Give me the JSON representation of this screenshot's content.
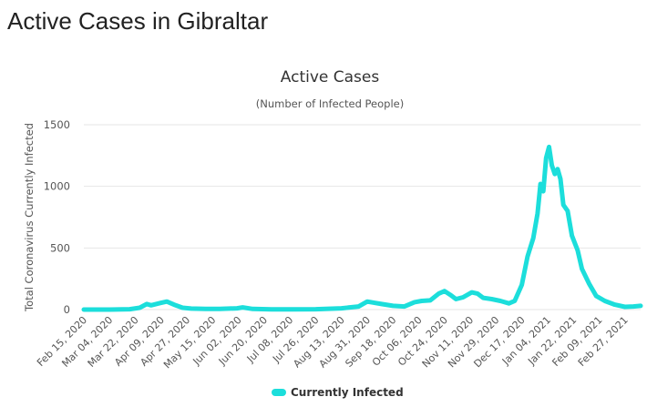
{
  "page": {
    "heading": "Active Cases in Gibraltar"
  },
  "chart_data": {
    "type": "line",
    "title": "Active Cases",
    "subtitle": "(Number of Infected People)",
    "xlabel": "",
    "ylabel": "Total Coronavirus Currently Infected",
    "ylim": [
      0,
      1500
    ],
    "yticks": [
      0,
      500,
      1000,
      1500
    ],
    "grid": true,
    "legend_position": "bottom-center",
    "x_start": "Feb 15, 2020",
    "x_end": "Mar 10, 2021",
    "xtick_labels": [
      "Feb 15, 2020",
      "Mar 04, 2020",
      "Mar 22, 2020",
      "Apr 09, 2020",
      "Apr 27, 2020",
      "May 15, 2020",
      "Jun 02, 2020",
      "Jun 20, 2020",
      "Jul 08, 2020",
      "Jul 26, 2020",
      "Aug 13, 2020",
      "Aug 31, 2020",
      "Sep 18, 2020",
      "Oct 06, 2020",
      "Oct 24, 2020",
      "Nov 11, 2020",
      "Nov 29, 2020",
      "Dec 17, 2020",
      "Jan 04, 2021",
      "Jan 22, 2021",
      "Feb 09, 2021",
      "Feb 27, 2021"
    ],
    "series": [
      {
        "name": "Currently Infected",
        "color": "#1cdedb",
        "points": [
          [
            "Feb 15, 2020",
            0
          ],
          [
            "Mar 04, 2020",
            0
          ],
          [
            "Mar 18, 2020",
            3
          ],
          [
            "Mar 25, 2020",
            15
          ],
          [
            "Mar 30, 2020",
            45
          ],
          [
            "Apr 02, 2020",
            35
          ],
          [
            "Apr 09, 2020",
            55
          ],
          [
            "Apr 13, 2020",
            65
          ],
          [
            "Apr 18, 2020",
            40
          ],
          [
            "Apr 24, 2020",
            15
          ],
          [
            "Apr 30, 2020",
            8
          ],
          [
            "May 10, 2020",
            5
          ],
          [
            "May 20, 2020",
            5
          ],
          [
            "Jun 01, 2020",
            10
          ],
          [
            "Jun 05, 2020",
            18
          ],
          [
            "Jun 12, 2020",
            5
          ],
          [
            "Jun 25, 2020",
            2
          ],
          [
            "Jul 10, 2020",
            2
          ],
          [
            "Jul 26, 2020",
            3
          ],
          [
            "Aug 13, 2020",
            10
          ],
          [
            "Aug 25, 2020",
            25
          ],
          [
            "Aug 31, 2020",
            65
          ],
          [
            "Sep 05, 2020",
            55
          ],
          [
            "Sep 10, 2020",
            45
          ],
          [
            "Sep 18, 2020",
            30
          ],
          [
            "Sep 26, 2020",
            25
          ],
          [
            "Oct 03, 2020",
            60
          ],
          [
            "Oct 08, 2020",
            70
          ],
          [
            "Oct 14, 2020",
            75
          ],
          [
            "Oct 20, 2020",
            130
          ],
          [
            "Oct 24, 2020",
            150
          ],
          [
            "Oct 28, 2020",
            120
          ],
          [
            "Nov 01, 2020",
            85
          ],
          [
            "Nov 06, 2020",
            100
          ],
          [
            "Nov 12, 2020",
            140
          ],
          [
            "Nov 16, 2020",
            130
          ],
          [
            "Nov 20, 2020",
            95
          ],
          [
            "Nov 26, 2020",
            85
          ],
          [
            "Dec 02, 2020",
            70
          ],
          [
            "Dec 08, 2020",
            50
          ],
          [
            "Dec 12, 2020",
            70
          ],
          [
            "Dec 17, 2020",
            200
          ],
          [
            "Dec 21, 2020",
            430
          ],
          [
            "Dec 25, 2020",
            580
          ],
          [
            "Dec 28, 2020",
            780
          ],
          [
            "Dec 30, 2020",
            1020
          ],
          [
            "Jan 01, 2021",
            960
          ],
          [
            "Jan 03, 2021",
            1230
          ],
          [
            "Jan 05, 2021",
            1320
          ],
          [
            "Jan 07, 2021",
            1170
          ],
          [
            "Jan 09, 2021",
            1100
          ],
          [
            "Jan 11, 2021",
            1140
          ],
          [
            "Jan 13, 2021",
            1060
          ],
          [
            "Jan 15, 2021",
            850
          ],
          [
            "Jan 18, 2021",
            800
          ],
          [
            "Jan 21, 2021",
            600
          ],
          [
            "Jan 25, 2021",
            480
          ],
          [
            "Jan 28, 2021",
            330
          ],
          [
            "Feb 02, 2021",
            210
          ],
          [
            "Feb 07, 2021",
            110
          ],
          [
            "Feb 13, 2021",
            70
          ],
          [
            "Feb 20, 2021",
            40
          ],
          [
            "Feb 27, 2021",
            22
          ],
          [
            "Mar 05, 2021",
            25
          ],
          [
            "Mar 10, 2021",
            30
          ]
        ]
      }
    ]
  }
}
